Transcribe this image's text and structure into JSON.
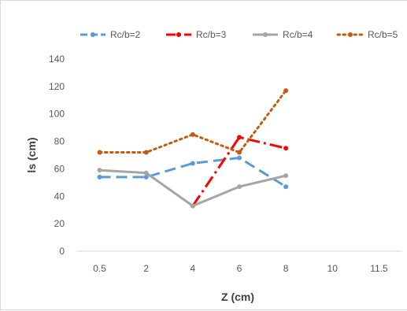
{
  "chart_data": {
    "type": "line",
    "title": "",
    "xlabel": "Z (cm)",
    "ylabel": "ls (cm)",
    "categories": [
      "0.5",
      "2",
      "4",
      "6",
      "8",
      "10",
      "11.5"
    ],
    "ylim": [
      0,
      140
    ],
    "yticks": [
      0,
      20,
      40,
      60,
      80,
      100,
      120,
      140
    ],
    "grid": false,
    "legend_position": "top",
    "series": [
      {
        "name": "Rc/b=2",
        "color": "#5b9bd5",
        "style": "dashed",
        "values": [
          54,
          54,
          64,
          68,
          47,
          null,
          null
        ]
      },
      {
        "name": "Rc/b=3",
        "color": "#ff0000",
        "style": "dash-dot",
        "values": [
          null,
          null,
          33,
          83,
          75,
          null,
          null
        ]
      },
      {
        "name": "Rc/b=4",
        "color": "#a5a5a5",
        "style": "solid",
        "values": [
          59,
          57,
          33,
          47,
          55,
          null,
          null
        ]
      },
      {
        "name": "Rc/b=5",
        "color": "#c55a11",
        "style": "dotted",
        "values": [
          72,
          72,
          85,
          72,
          117,
          null,
          null
        ]
      }
    ],
    "axis_color": "#d9d9d9"
  }
}
